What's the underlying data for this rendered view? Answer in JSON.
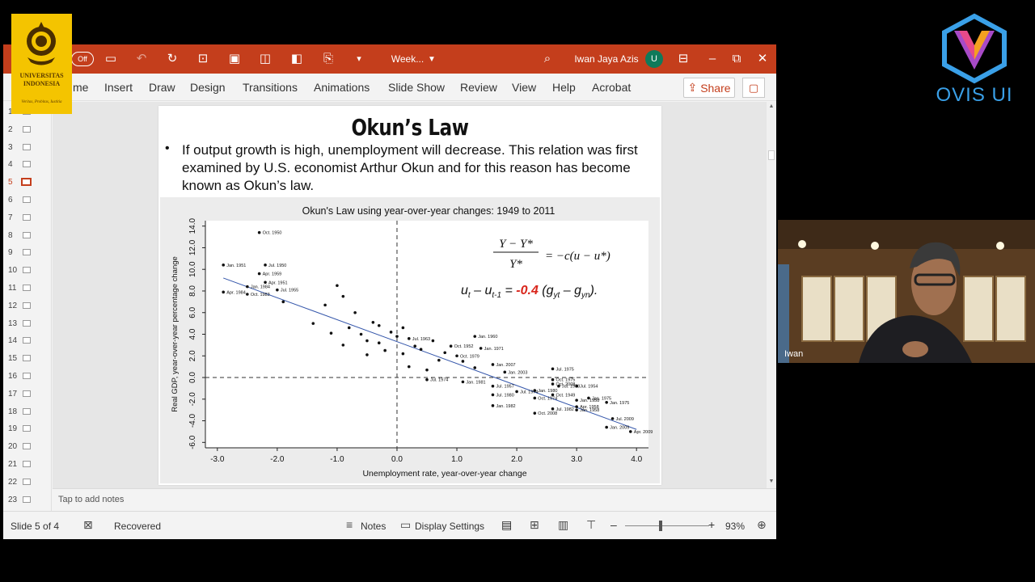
{
  "window": {
    "autosave_label": "Off",
    "file_name": "Week...",
    "user_name": "Iwan Jaya Azis",
    "user_initial": "U"
  },
  "ribbon": {
    "tabs": [
      "me",
      "Insert",
      "Draw",
      "Design",
      "Transitions",
      "Animations",
      "Slide Show",
      "Review",
      "View",
      "Help",
      "Acrobat"
    ],
    "share_label": "Share"
  },
  "thumbnails": {
    "numbers": [
      "1",
      "2",
      "3",
      "4",
      "5",
      "6",
      "7",
      "8",
      "9",
      "10",
      "11",
      "12",
      "13",
      "14",
      "15",
      "16",
      "17",
      "18",
      "19",
      "20",
      "21",
      "22",
      "23"
    ],
    "active_index": 4
  },
  "notes": {
    "placeholder": "Tap to add notes"
  },
  "status": {
    "slide_info": "Slide 5 of 4",
    "recovered": "Recovered",
    "notes_label": "Notes",
    "display_settings_label": "Display Settings",
    "zoom": "93%"
  },
  "slide": {
    "title": "Okun’s Law",
    "bullet": "•",
    "body": "If output growth is high, unemployment will decrease. This relation was first examined by U.S. economist Arthur Okun and for this reason has become known as Okun’s law."
  },
  "chart_data": {
    "type": "scatter",
    "title": "Okun's Law using year-over-year changes: 1949 to 2011",
    "xlabel": "Unemployment rate, year-over-year change",
    "ylabel": "Real GDP, year-over-year percentage change",
    "xlim": [
      -3.2,
      4.2
    ],
    "ylim": [
      -6.5,
      14.5
    ],
    "xticks": [
      "-3.0",
      "-2.0",
      "-1.0",
      "0.0",
      "1.0",
      "2.0",
      "3.0",
      "4.0"
    ],
    "yticks": [
      "-6.0",
      "-4.0",
      "-2.0",
      "0.0",
      "2.0",
      "4.0",
      "6.0",
      "8.0",
      "10.0",
      "12.0",
      "14.0"
    ],
    "ytick_values": [
      -6,
      -4,
      -2,
      0,
      2,
      4,
      6,
      8,
      10,
      12,
      14
    ],
    "xtick_values": [
      -3,
      -2,
      -1,
      0,
      1,
      2,
      3,
      4
    ],
    "fit_line": {
      "x": [
        -2.9,
        4.0
      ],
      "y": [
        9.2,
        -4.8
      ]
    },
    "formula_1": "Y − Y* / Y* = −c(u − u*)",
    "formula_2": {
      "lhs": "u",
      "mid": "– u",
      "coef": "-0.4",
      "rhs": "(g – g )."
    },
    "coef_color": "#d9261c",
    "line_color": "#3355aa",
    "points": [
      {
        "x": -2.3,
        "y": 13.4,
        "label": "Oct. 1950"
      },
      {
        "x": -2.9,
        "y": 10.4,
        "label": "Jan. 1951"
      },
      {
        "x": -2.2,
        "y": 10.4,
        "label": "Jul. 1950"
      },
      {
        "x": -2.3,
        "y": 9.6,
        "label": "Apr. 1959"
      },
      {
        "x": -2.2,
        "y": 8.8,
        "label": "Apr. 1951"
      },
      {
        "x": -2.5,
        "y": 8.4,
        "label": "Jan. 1984"
      },
      {
        "x": -2.0,
        "y": 8.1,
        "label": "Jul. 1955"
      },
      {
        "x": -2.9,
        "y": 7.9,
        "label": "Apr. 1984"
      },
      {
        "x": -2.5,
        "y": 7.7,
        "label": "Oct. 1983"
      },
      {
        "x": -1.9,
        "y": 7.0,
        "label": ""
      },
      {
        "x": -1.4,
        "y": 5.0,
        "label": ""
      },
      {
        "x": -1.0,
        "y": 8.5,
        "label": ""
      },
      {
        "x": -1.2,
        "y": 6.7,
        "label": ""
      },
      {
        "x": -0.9,
        "y": 7.5,
        "label": ""
      },
      {
        "x": -0.7,
        "y": 6.0,
        "label": ""
      },
      {
        "x": -0.4,
        "y": 5.1,
        "label": ""
      },
      {
        "x": -0.3,
        "y": 3.2,
        "label": ""
      },
      {
        "x": -0.1,
        "y": 4.2,
        "label": ""
      },
      {
        "x": -0.2,
        "y": 2.5,
        "label": ""
      },
      {
        "x": 0.2,
        "y": 3.6,
        "label": "Jul. 1963"
      },
      {
        "x": 0.1,
        "y": 2.2,
        "label": ""
      },
      {
        "x": 0.4,
        "y": 2.6,
        "label": ""
      },
      {
        "x": 0.6,
        "y": 3.4,
        "label": ""
      },
      {
        "x": 0.9,
        "y": 2.9,
        "label": "Oct. 1952"
      },
      {
        "x": 1.3,
        "y": 3.8,
        "label": "Jan. 1960"
      },
      {
        "x": 1.4,
        "y": 2.7,
        "label": "Jan. 1971"
      },
      {
        "x": 1.0,
        "y": 2.0,
        "label": "Oct. 1979"
      },
      {
        "x": 1.1,
        "y": 1.5,
        "label": ""
      },
      {
        "x": 1.6,
        "y": 1.2,
        "label": "Jan. 2007"
      },
      {
        "x": 1.8,
        "y": 0.5,
        "label": "Jan. 2003"
      },
      {
        "x": 0.5,
        "y": -0.2,
        "label": "Jul. 1974"
      },
      {
        "x": 1.1,
        "y": -0.4,
        "label": "Jan. 1981"
      },
      {
        "x": 1.6,
        "y": -0.8,
        "label": "Jul. 1957"
      },
      {
        "x": 2.0,
        "y": -1.3,
        "label": "Jul. 1974"
      },
      {
        "x": 1.6,
        "y": -1.6,
        "label": "Jul. 1980"
      },
      {
        "x": 1.6,
        "y": -2.6,
        "label": "Jan. 1982"
      },
      {
        "x": 2.3,
        "y": -1.2,
        "label": "Jan. 1980"
      },
      {
        "x": 2.3,
        "y": -1.9,
        "label": "Oct. 1974"
      },
      {
        "x": 2.6,
        "y": -1.6,
        "label": "Oct. 1949"
      },
      {
        "x": 2.6,
        "y": 0.8,
        "label": "Jul. 1975"
      },
      {
        "x": 2.6,
        "y": -0.2,
        "label": "Oct. 1975"
      },
      {
        "x": 2.6,
        "y": -0.6,
        "label": "Oct. 2008"
      },
      {
        "x": 2.7,
        "y": -0.8,
        "label": "Jul. 1958"
      },
      {
        "x": 3.0,
        "y": -0.8,
        "label": "Jul. 1954"
      },
      {
        "x": 2.6,
        "y": -2.9,
        "label": "Jul. 1982"
      },
      {
        "x": 2.3,
        "y": -3.3,
        "label": "Oct. 2008"
      },
      {
        "x": 3.2,
        "y": -1.9,
        "label": "Jan. 1975"
      },
      {
        "x": 3.0,
        "y": -2.1,
        "label": "Jan. 1958"
      },
      {
        "x": 3.5,
        "y": -2.3,
        "label": "Jan. 1975"
      },
      {
        "x": 3.0,
        "y": -2.7,
        "label": "Apr. 1958"
      },
      {
        "x": 3.0,
        "y": -3.0,
        "label": "Jan. 1958"
      },
      {
        "x": 3.6,
        "y": -3.8,
        "label": "Jul. 2009"
      },
      {
        "x": 3.5,
        "y": -4.6,
        "label": "Jan. 2009"
      },
      {
        "x": 3.9,
        "y": -5.0,
        "label": "Apr. 2009"
      },
      {
        "x": -0.8,
        "y": 4.6,
        "label": ""
      },
      {
        "x": -0.6,
        "y": 4.0,
        "label": ""
      },
      {
        "x": -0.5,
        "y": 3.4,
        "label": ""
      },
      {
        "x": -0.3,
        "y": 4.8,
        "label": ""
      },
      {
        "x": 0.0,
        "y": 3.8,
        "label": ""
      },
      {
        "x": 0.1,
        "y": 4.6,
        "label": ""
      },
      {
        "x": 0.3,
        "y": 2.9,
        "label": ""
      },
      {
        "x": -0.5,
        "y": 2.1,
        "label": ""
      },
      {
        "x": -0.9,
        "y": 3.0,
        "label": ""
      },
      {
        "x": -1.1,
        "y": 4.1,
        "label": ""
      },
      {
        "x": 0.7,
        "y": 1.6,
        "label": ""
      },
      {
        "x": 0.2,
        "y": 1.0,
        "label": ""
      },
      {
        "x": 0.5,
        "y": 0.7,
        "label": ""
      },
      {
        "x": 1.3,
        "y": 0.9,
        "label": ""
      },
      {
        "x": 0.8,
        "y": 2.3,
        "label": ""
      }
    ]
  }
}
